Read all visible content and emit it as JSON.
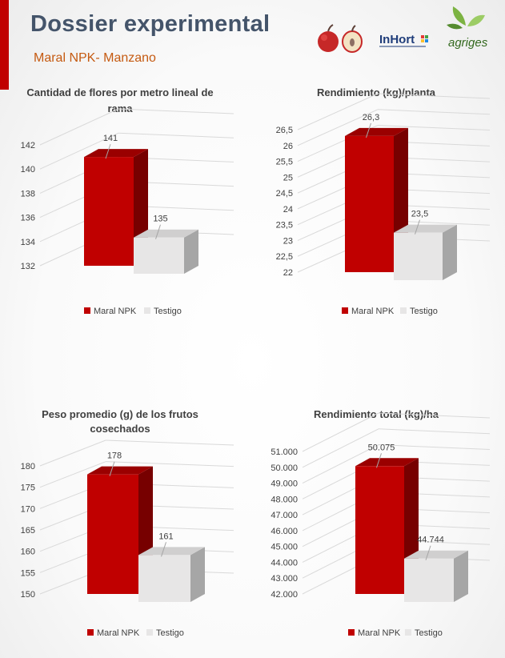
{
  "header": {
    "title": "Dossier experimental",
    "subtitle": "Maral NPK- Manzano",
    "logo_inhort": "InHort",
    "logo_agriges": "agriges"
  },
  "colors": {
    "primary": "#c00000",
    "control": "#e7e6e6",
    "title": "#44546a",
    "subtitle": "#c55a11"
  },
  "chart_data": [
    {
      "type": "bar",
      "title": [
        "Cantidad de flores por metro lineal de",
        "rama"
      ],
      "categories": [
        "Maral NPK",
        "Testigo"
      ],
      "values": [
        141,
        135
      ],
      "value_labels": [
        "141",
        "135"
      ],
      "yticks": [
        "132",
        "134",
        "136",
        "138",
        "140",
        "142"
      ],
      "ylim": [
        132,
        142
      ],
      "legend": [
        "Maral NPK",
        "Testigo"
      ],
      "legend_position": "bottom"
    },
    {
      "type": "bar",
      "title": [
        "Rendimiento (kg)/planta"
      ],
      "categories": [
        "Maral NPK",
        "Testigo"
      ],
      "values": [
        26.3,
        23.5
      ],
      "value_labels": [
        "26,3",
        "23,5"
      ],
      "yticks": [
        "22",
        "22,5",
        "23",
        "23,5",
        "24",
        "24,5",
        "25",
        "25,5",
        "26",
        "26,5"
      ],
      "ylim": [
        22,
        26.5
      ],
      "legend": [
        "Maral NPK",
        "Testigo"
      ],
      "legend_position": "bottom"
    },
    {
      "type": "bar",
      "title": [
        "Peso promedio (g) de los frutos",
        "cosechados"
      ],
      "categories": [
        "Maral NPK",
        "Testigo"
      ],
      "values": [
        178,
        161
      ],
      "value_labels": [
        "178",
        "161"
      ],
      "yticks": [
        "150",
        "155",
        "160",
        "165",
        "170",
        "175",
        "180"
      ],
      "ylim": [
        150,
        180
      ],
      "legend": [
        "Maral NPK",
        "Testigo"
      ],
      "legend_position": "bottom"
    },
    {
      "type": "bar",
      "title": [
        "Rendimiento total (kg)/ha"
      ],
      "categories": [
        "Maral NPK",
        "Testigo"
      ],
      "values": [
        50075,
        44744
      ],
      "value_labels": [
        "50.075",
        "44.744"
      ],
      "yticks": [
        "42.000",
        "43.000",
        "44.000",
        "45.000",
        "46.000",
        "47.000",
        "48.000",
        "49.000",
        "50.000",
        "51.000"
      ],
      "ylim": [
        42000,
        51000
      ],
      "legend": [
        "Maral NPK",
        "Testigo"
      ],
      "legend_position": "bottom"
    }
  ]
}
